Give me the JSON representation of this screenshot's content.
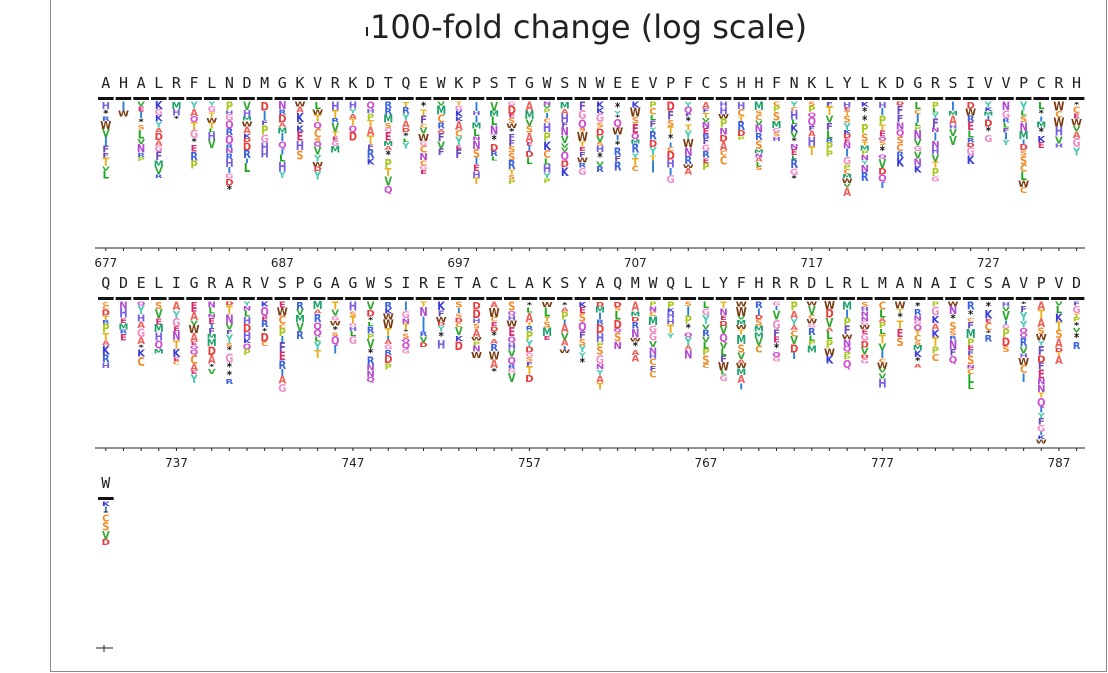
{
  "chart_data": {
    "type": "sequence-logo",
    "title": "100-fold change (log scale)",
    "scale_bar_label": "",
    "rows": [
      {
        "sequence": "AHALRFLNDMGKVRKDTQEWKPSTGWSNWEEVPFCSHHFNKLYLKDGRSIVVPCRH",
        "start_position": 677,
        "tick_labels": [
          "677",
          "687",
          "697",
          "707",
          "717",
          "727"
        ]
      },
      {
        "sequence": "QDELIGRARVSPGAGWSIRETACLAKSYAQMWQLLYFHRRDLRLMANAICSAVPVD",
        "start_position": 733,
        "tick_labels": [
          "737",
          "747",
          "757",
          "767",
          "777",
          "787"
        ]
      },
      {
        "sequence": "W",
        "start_position": 789,
        "tick_labels": []
      }
    ],
    "alphabet": "ACDEFGHIKLMNPQRSTVWY",
    "residue_colors": {
      "A": "#f0605a",
      "C": "#f08d2a",
      "D": "#e93b3b",
      "E": "#d42b6b",
      "F": "#6b4ab8",
      "G": "#f08dc8",
      "H": "#7a5fe0",
      "I": "#2a7fd8",
      "K": "#3a3ad8",
      "L": "#1aa81a",
      "M": "#1fa36c",
      "N": "#b04ad0",
      "P": "#a8c820",
      "Q": "#d050d0",
      "R": "#3a62e0",
      "S": "#f58a2a",
      "T": "#e8b020",
      "V": "#33a833",
      "W": "#7a3a10",
      "Y": "#4ac8b0",
      "*": "#111111"
    }
  }
}
